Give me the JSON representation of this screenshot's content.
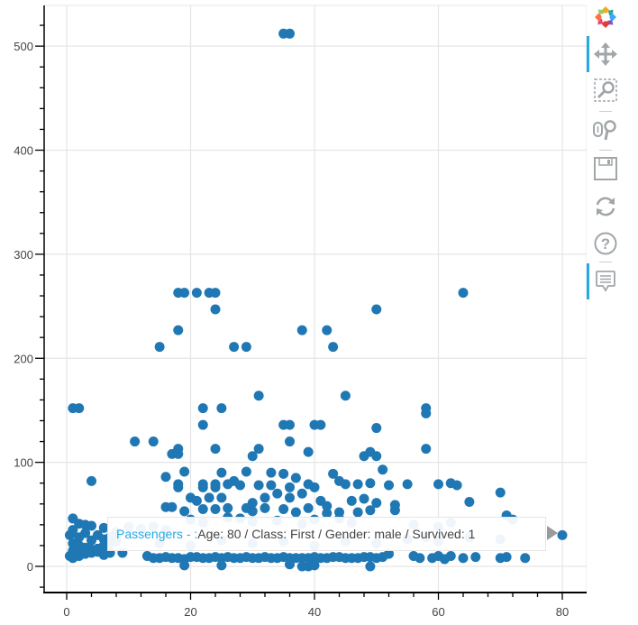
{
  "chart_data": {
    "type": "scatter",
    "title": "",
    "xlabel": "",
    "ylabel": "",
    "xlim": [
      -3.5,
      84
    ],
    "ylim": [
      -25,
      540
    ],
    "grid": true,
    "marker_color": "#1f77b4",
    "x_ticks": [
      0,
      20,
      40,
      60,
      80
    ],
    "y_ticks": [
      0,
      100,
      200,
      300,
      400,
      500
    ],
    "series": [
      {
        "name": "Passengers",
        "points": [
          [
            35,
            512
          ],
          [
            36,
            512
          ],
          [
            18,
            263
          ],
          [
            19,
            263
          ],
          [
            21,
            263
          ],
          [
            23,
            263
          ],
          [
            24,
            263
          ],
          [
            64,
            263
          ],
          [
            24,
            247
          ],
          [
            50,
            247
          ],
          [
            18,
            227
          ],
          [
            38,
            227
          ],
          [
            42,
            227
          ],
          [
            15,
            211
          ],
          [
            27,
            211
          ],
          [
            29,
            211
          ],
          [
            43,
            211
          ],
          [
            31,
            164
          ],
          [
            45,
            164
          ],
          [
            1,
            152
          ],
          [
            2,
            152
          ],
          [
            22,
            152
          ],
          [
            25,
            152
          ],
          [
            58,
            152
          ],
          [
            58,
            147
          ],
          [
            22,
            136
          ],
          [
            35,
            136
          ],
          [
            36,
            136
          ],
          [
            40,
            136
          ],
          [
            41,
            136
          ],
          [
            50,
            133
          ],
          [
            11,
            120
          ],
          [
            14,
            120
          ],
          [
            36,
            120
          ],
          [
            18,
            113
          ],
          [
            24,
            113
          ],
          [
            31,
            113
          ],
          [
            39,
            110
          ],
          [
            49,
            110
          ],
          [
            58,
            113
          ],
          [
            17,
            108
          ],
          [
            18,
            108
          ],
          [
            30,
            106
          ],
          [
            48,
            106
          ],
          [
            50,
            106
          ],
          [
            29,
            91
          ],
          [
            19,
            91
          ],
          [
            33,
            90
          ],
          [
            43,
            89
          ],
          [
            51,
            93
          ],
          [
            35,
            89
          ],
          [
            25,
            90
          ],
          [
            4,
            82
          ],
          [
            16,
            86
          ],
          [
            27,
            82
          ],
          [
            37,
            85
          ],
          [
            44,
            82
          ],
          [
            49,
            80
          ],
          [
            52,
            78
          ],
          [
            60,
            79
          ],
          [
            62,
            80
          ],
          [
            63,
            78
          ],
          [
            18,
            79
          ],
          [
            18,
            76
          ],
          [
            22,
            79
          ],
          [
            22,
            76
          ],
          [
            24,
            79
          ],
          [
            24,
            76
          ],
          [
            26,
            79
          ],
          [
            28,
            78
          ],
          [
            31,
            78
          ],
          [
            33,
            78
          ],
          [
            36,
            76
          ],
          [
            39,
            79
          ],
          [
            40,
            76
          ],
          [
            45,
            79
          ],
          [
            47,
            79
          ],
          [
            55,
            79
          ],
          [
            20,
            66
          ],
          [
            21,
            63
          ],
          [
            23,
            66
          ],
          [
            25,
            66
          ],
          [
            30,
            61
          ],
          [
            32,
            66
          ],
          [
            34,
            70
          ],
          [
            36,
            66
          ],
          [
            38,
            70
          ],
          [
            41,
            63
          ],
          [
            42,
            58
          ],
          [
            46,
            63
          ],
          [
            48,
            65
          ],
          [
            50,
            61
          ],
          [
            53,
            59
          ],
          [
            65,
            62
          ],
          [
            70,
            71
          ],
          [
            16,
            57
          ],
          [
            17,
            57
          ],
          [
            19,
            53
          ],
          [
            22,
            55
          ],
          [
            24,
            55
          ],
          [
            26,
            56
          ],
          [
            29,
            56
          ],
          [
            30,
            53
          ],
          [
            32,
            56
          ],
          [
            35,
            55
          ],
          [
            37,
            52
          ],
          [
            39,
            56
          ],
          [
            42,
            51
          ],
          [
            44,
            52
          ],
          [
            47,
            52
          ],
          [
            49,
            54
          ],
          [
            53,
            54
          ],
          [
            1,
            46
          ],
          [
            2,
            41
          ],
          [
            3,
            40
          ],
          [
            4,
            39
          ],
          [
            6,
            37
          ],
          [
            8,
            33
          ],
          [
            10,
            38
          ],
          [
            12,
            36
          ],
          [
            14,
            38
          ],
          [
            16,
            35
          ],
          [
            20,
            45
          ],
          [
            22,
            42
          ],
          [
            26,
            47
          ],
          [
            28,
            46
          ],
          [
            30,
            43
          ],
          [
            34,
            44
          ],
          [
            38,
            41
          ],
          [
            40,
            45
          ],
          [
            44,
            46
          ],
          [
            46,
            42
          ],
          [
            56,
            40
          ],
          [
            60,
            38
          ],
          [
            62,
            42
          ],
          [
            71,
            49
          ],
          [
            72,
            45
          ],
          [
            0.5,
            30
          ],
          [
            1,
            35
          ],
          [
            2,
            28
          ],
          [
            3,
            32
          ],
          [
            4,
            25
          ],
          [
            5,
            30
          ],
          [
            6,
            26
          ],
          [
            7,
            28
          ],
          [
            8,
            24
          ],
          [
            1,
            22
          ],
          [
            2,
            20
          ],
          [
            3,
            18
          ],
          [
            4,
            16
          ],
          [
            1,
            15
          ],
          [
            2,
            12
          ],
          [
            3,
            14
          ],
          [
            5,
            17
          ],
          [
            6,
            20
          ],
          [
            7,
            22
          ],
          [
            8,
            27
          ],
          [
            0.5,
            10
          ],
          [
            1,
            8
          ],
          [
            2,
            10
          ],
          [
            3,
            12
          ],
          [
            4,
            13
          ],
          [
            5,
            14
          ],
          [
            6,
            11
          ],
          [
            7,
            13
          ],
          [
            9,
            13
          ],
          [
            13,
            10
          ],
          [
            14,
            8
          ],
          [
            15,
            8
          ],
          [
            16,
            9
          ],
          [
            17,
            8
          ],
          [
            18,
            8
          ],
          [
            19,
            7
          ],
          [
            20,
            9
          ],
          [
            21,
            9
          ],
          [
            22,
            8
          ],
          [
            23,
            8
          ],
          [
            24,
            9
          ],
          [
            25,
            8
          ],
          [
            26,
            9
          ],
          [
            27,
            8
          ],
          [
            28,
            8
          ],
          [
            29,
            9
          ],
          [
            30,
            8
          ],
          [
            31,
            8
          ],
          [
            32,
            9
          ],
          [
            33,
            8
          ],
          [
            34,
            8
          ],
          [
            35,
            9
          ],
          [
            36,
            8
          ],
          [
            37,
            8
          ],
          [
            38,
            8
          ],
          [
            39,
            8
          ],
          [
            40,
            9
          ],
          [
            41,
            8
          ],
          [
            42,
            8
          ],
          [
            43,
            9
          ],
          [
            44,
            9
          ],
          [
            45,
            8
          ],
          [
            46,
            8
          ],
          [
            47,
            8
          ],
          [
            48,
            9
          ],
          [
            49,
            9
          ],
          [
            50,
            8
          ],
          [
            51,
            9
          ],
          [
            19,
            1
          ],
          [
            25,
            1
          ],
          [
            36,
            2
          ],
          [
            38,
            0
          ],
          [
            39,
            0
          ],
          [
            40,
            1
          ],
          [
            49,
            0
          ],
          [
            52,
            12
          ],
          [
            56,
            10
          ],
          [
            57,
            8
          ],
          [
            59,
            8
          ],
          [
            60,
            10
          ],
          [
            61,
            7
          ],
          [
            62,
            10
          ],
          [
            64,
            8
          ],
          [
            66,
            9
          ],
          [
            70,
            8
          ],
          [
            71,
            9
          ],
          [
            74,
            8
          ],
          [
            15,
            22
          ],
          [
            20,
            20
          ],
          [
            25,
            25
          ],
          [
            30,
            22
          ],
          [
            35,
            24
          ],
          [
            40,
            20
          ],
          [
            45,
            24
          ],
          [
            50,
            22
          ],
          [
            55,
            26
          ],
          [
            58,
            28
          ],
          [
            60,
            24
          ],
          [
            65,
            28
          ],
          [
            70,
            26
          ],
          [
            80,
            30
          ]
        ]
      }
    ],
    "hovered_point": {
      "age": 80,
      "class": "First",
      "gender": "male",
      "survived": 1
    }
  },
  "tooltip": {
    "label": "Passengers - :",
    "value": "Age: 80 / Class: First / Gender: male / Survived: 1"
  },
  "axes": {
    "x_tick_labels": [
      "0",
      "20",
      "40",
      "60",
      "80"
    ],
    "y_tick_labels": [
      "0",
      "100",
      "200",
      "300",
      "400",
      "500"
    ]
  },
  "toolbar": {
    "tools": [
      {
        "name": "bokeh-logo",
        "title": "Bokeh"
      },
      {
        "name": "pan",
        "title": "Pan",
        "active": true
      },
      {
        "name": "box-zoom",
        "title": "Box Zoom"
      },
      {
        "name": "wheel-zoom",
        "title": "Wheel Zoom"
      },
      {
        "name": "save",
        "title": "Save"
      },
      {
        "name": "reset",
        "title": "Reset"
      },
      {
        "name": "help",
        "title": "Help"
      },
      {
        "name": "hover",
        "title": "Hover",
        "active": true
      }
    ]
  },
  "colors": {
    "marker": "#1f77b4",
    "grid": "#e5e5e5",
    "axis": "#000000",
    "tooltip_label": "#26aae1",
    "tooltip_text": "#444444",
    "toolbar_active": "#26aae1",
    "icon": "#a1a6a9"
  }
}
